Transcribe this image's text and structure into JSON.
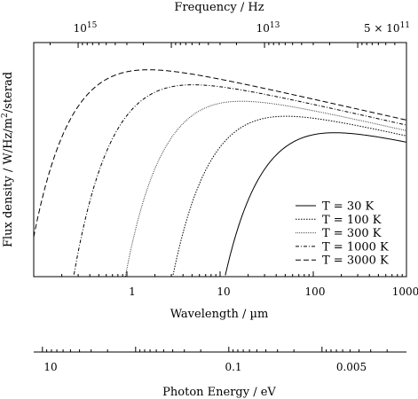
{
  "chart_data": {
    "type": "line",
    "xscale": "log",
    "yscale": "log",
    "xlabel": "Wavelength / µm",
    "ylabel": "Flux density / W/Hz/m²/sterad",
    "xlim": [
      0.1,
      1000
    ],
    "ylim": [
      1e-28,
      2e-06
    ],
    "x_ticklabels": [
      "1",
      "10",
      "100",
      "1000"
    ],
    "x_ticks": [
      1,
      10,
      100,
      1000
    ],
    "y_ticklabels": [],
    "top_axis": {
      "label": "Frequency / Hz",
      "ticks": [
        {
          "label": "10^15",
          "value": 1000000000000000.0
        },
        {
          "label": "10^13",
          "value": 10000000000000.0
        },
        {
          "label": "5 × 10^11",
          "value": 500000000000.0
        }
      ]
    },
    "bottom_axis": {
      "label": "Photon Energy / eV",
      "xlim_eV": [
        12.4,
        0.00124
      ],
      "ticks": [
        {
          "label": "10",
          "value": 10
        },
        {
          "label": "0.1",
          "value": 0.1
        },
        {
          "label": "0.005",
          "value": 0.005
        }
      ]
    },
    "grid": false,
    "legend_position": "lower-right",
    "series": [
      {
        "name": "T = 30 K",
        "temperature": 30,
        "style": "solid"
      },
      {
        "name": "T = 100 K",
        "temperature": 100,
        "style": "dotted"
      },
      {
        "name": "T = 300 K",
        "temperature": 300,
        "style": "fine-dotted"
      },
      {
        "name": "T = 1000 K",
        "temperature": 1000,
        "style": "dash-dot"
      },
      {
        "name": "T = 3000 K",
        "temperature": 3000,
        "style": "dashed"
      }
    ],
    "peak_wavelengths_um": [
      170,
      51,
      17,
      5.1,
      1.7
    ]
  }
}
